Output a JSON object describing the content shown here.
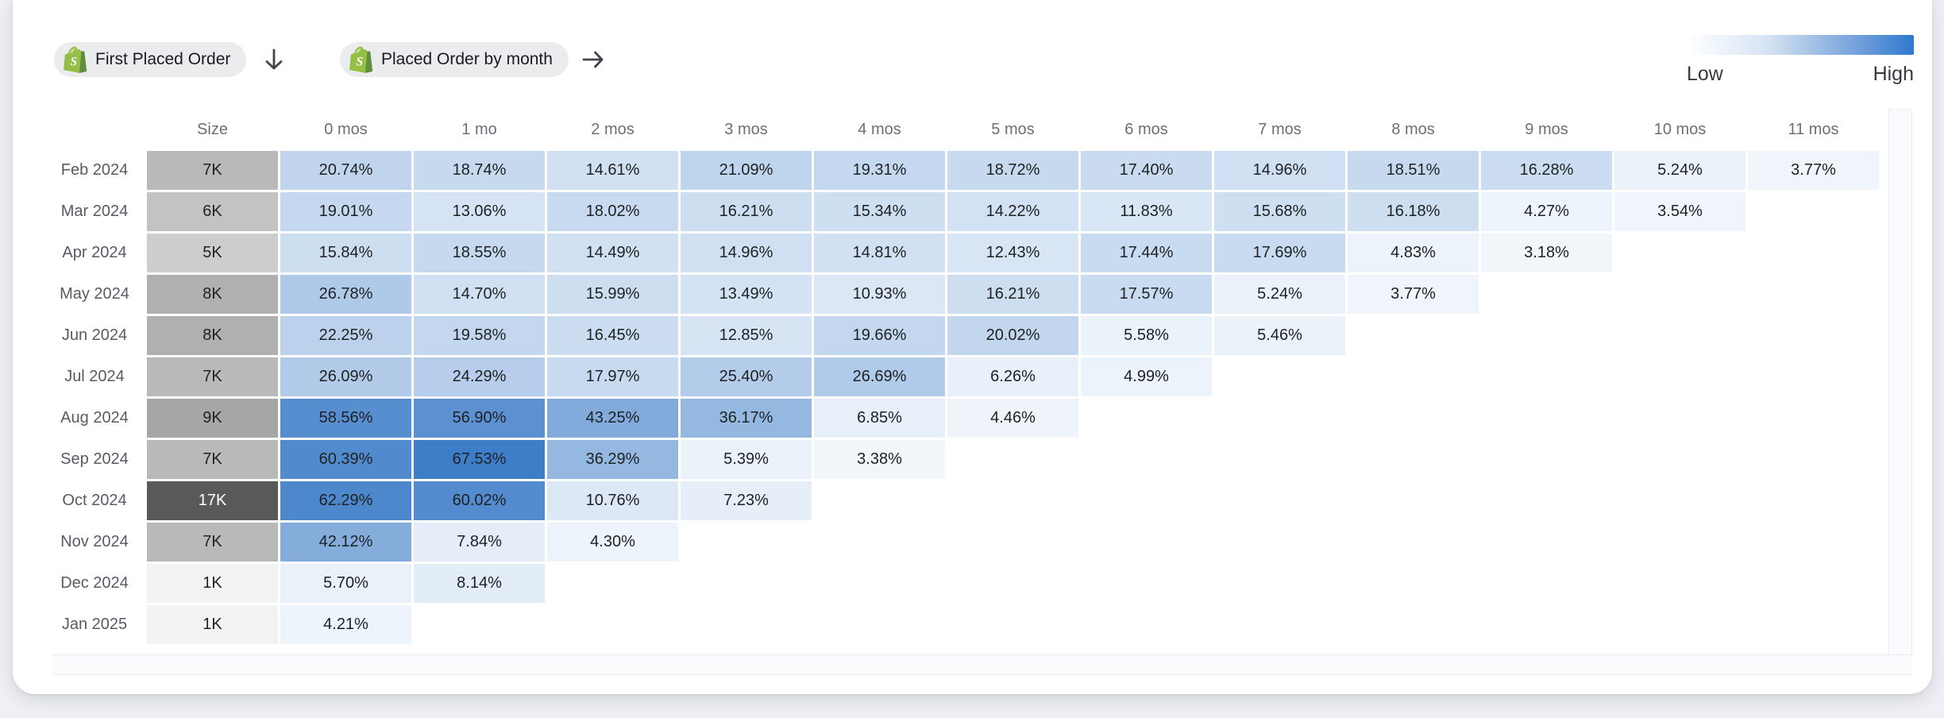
{
  "toolbar": {
    "chips": [
      {
        "label": "First Placed Order",
        "icon": "shopify-icon",
        "axis_direction": "down"
      },
      {
        "label": "Placed Order by month",
        "icon": "shopify-icon",
        "axis_direction": "right"
      }
    ]
  },
  "legend": {
    "low_label": "Low",
    "high_label": "High",
    "gradient_from": "#ffffff",
    "gradient_to": "#2f79ce"
  },
  "chart_data": {
    "type": "heatmap",
    "title": "Cohort retention: First Placed Order vs Placed Order by month",
    "columns": [
      "Size",
      "0 mos",
      "1 mo",
      "2 mos",
      "3 mos",
      "4 mos",
      "5 mos",
      "6 mos",
      "7 mos",
      "8 mos",
      "9 mos",
      "10 mos",
      "11 mos"
    ],
    "rows": [
      {
        "label": "Feb 2024",
        "size_label": "7K",
        "size_value": 7,
        "values": [
          20.74,
          18.74,
          14.61,
          21.09,
          19.31,
          18.72,
          17.4,
          14.96,
          18.51,
          16.28,
          5.24,
          3.77
        ]
      },
      {
        "label": "Mar 2024",
        "size_label": "6K",
        "size_value": 6,
        "values": [
          19.01,
          13.06,
          18.02,
          16.21,
          15.34,
          14.22,
          11.83,
          15.68,
          16.18,
          4.27,
          3.54
        ]
      },
      {
        "label": "Apr 2024",
        "size_label": "5K",
        "size_value": 5,
        "values": [
          15.84,
          18.55,
          14.49,
          14.96,
          14.81,
          12.43,
          17.44,
          17.69,
          4.83,
          3.18
        ]
      },
      {
        "label": "May 2024",
        "size_label": "8K",
        "size_value": 8,
        "values": [
          26.78,
          14.7,
          15.99,
          13.49,
          10.93,
          16.21,
          17.57,
          5.24,
          3.77
        ]
      },
      {
        "label": "Jun 2024",
        "size_label": "8K",
        "size_value": 8,
        "values": [
          22.25,
          19.58,
          16.45,
          12.85,
          19.66,
          20.02,
          5.58,
          5.46
        ]
      },
      {
        "label": "Jul 2024",
        "size_label": "7K",
        "size_value": 7,
        "values": [
          26.09,
          24.29,
          17.97,
          25.4,
          26.69,
          6.26,
          4.99
        ]
      },
      {
        "label": "Aug 2024",
        "size_label": "9K",
        "size_value": 9,
        "values": [
          58.56,
          56.9,
          43.25,
          36.17,
          6.85,
          4.46
        ]
      },
      {
        "label": "Sep 2024",
        "size_label": "7K",
        "size_value": 7,
        "values": [
          60.39,
          67.53,
          36.29,
          5.39,
          3.38
        ]
      },
      {
        "label": "Oct 2024",
        "size_label": "17K",
        "size_value": 17,
        "values": [
          62.29,
          60.02,
          10.76,
          7.23
        ]
      },
      {
        "label": "Nov 2024",
        "size_label": "7K",
        "size_value": 7,
        "values": [
          42.12,
          7.84,
          4.3
        ]
      },
      {
        "label": "Dec 2024",
        "size_label": "1K",
        "size_value": 1,
        "values": [
          5.7,
          8.14
        ]
      },
      {
        "label": "Jan 2025",
        "size_label": "1K",
        "size_value": 1,
        "values": [
          4.21
        ]
      }
    ],
    "value_format": "percent_2dp",
    "value_max": 67.53,
    "size_domain": [
      1,
      17
    ],
    "colors": {
      "heat_low": "#fafcfe",
      "heat_high": "#3e7dc8",
      "size_low": "#f3f3f3",
      "size_high": "#595959"
    },
    "legend_position": "top-right",
    "grid": false
  }
}
